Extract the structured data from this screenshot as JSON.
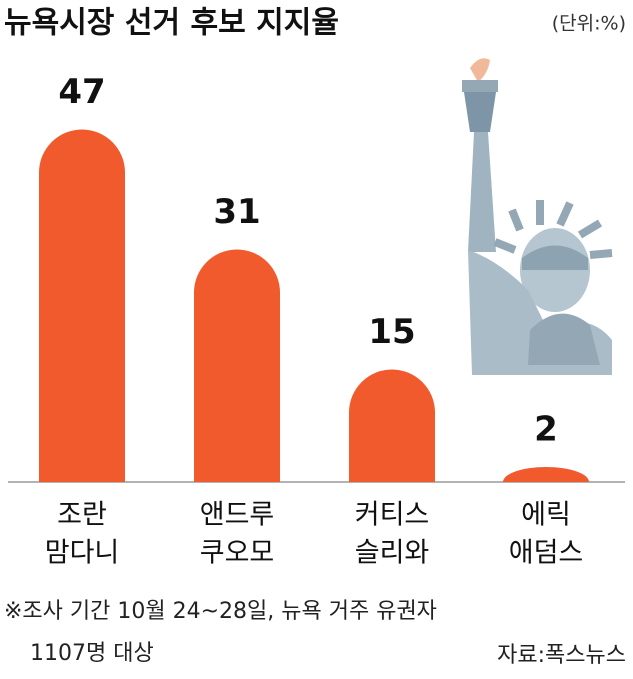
{
  "chart_data": {
    "type": "bar",
    "title": "뉴욕시장 선거 후보 지지율",
    "unit": "(단위:%)",
    "categories": [
      [
        "조란",
        "맘다니"
      ],
      [
        "앤드루",
        "쿠오모"
      ],
      [
        "커티스",
        "슬리와"
      ],
      [
        "에릭",
        "애덤스"
      ]
    ],
    "values": [
      47,
      31,
      15,
      2
    ],
    "color": "#f15a2c",
    "note": [
      "※조사 기간 10월 24~28일, 뉴욕 거주 유권자",
      "1107명 대상"
    ],
    "source": "자료:폭스뉴스"
  }
}
